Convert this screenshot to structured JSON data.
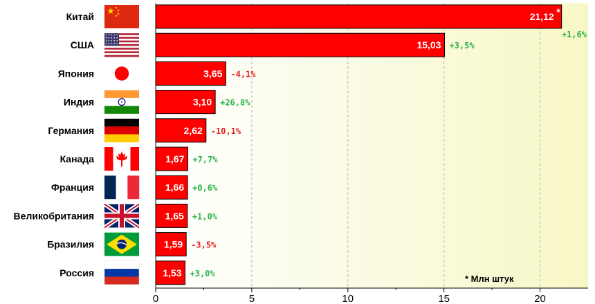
{
  "colors": {
    "bar": "#ff0000",
    "positive": "#2db34a",
    "negative": "#e02020",
    "plot_gradient_start": "#ffffff",
    "plot_gradient_end": "#f7f7c6"
  },
  "chart_data": {
    "type": "bar",
    "orientation": "horizontal",
    "categories": [
      "Китай",
      "США",
      "Япония",
      "Индия",
      "Германия",
      "Канада",
      "Франция",
      "Великобритания",
      "Бразилия",
      "Россия"
    ],
    "values": [
      21.12,
      15.03,
      3.65,
      3.1,
      2.62,
      1.67,
      1.66,
      1.65,
      1.59,
      1.53
    ],
    "value_labels": [
      "21,12",
      "15,03",
      "3,65",
      "3,10",
      "2,62",
      "1,67",
      "1,66",
      "1,65",
      "1,59",
      "1,53"
    ],
    "changes": [
      "+1,6%",
      "+3,5%",
      "-4,1%",
      "+26,8%",
      "-10,1%",
      "+7,7%",
      "+0,6%",
      "+1,0%",
      "-3,5%",
      "+3,0%"
    ],
    "flags": [
      "china-flag",
      "usa-flag",
      "japan-flag",
      "india-flag",
      "germany-flag",
      "canada-flag",
      "france-flag",
      "uk-flag",
      "brazil-flag",
      "russia-flag"
    ],
    "first_value_marker": "*",
    "footnote": "* Млн штук",
    "xlim": [
      0,
      22.5
    ],
    "x_ticks": [
      0,
      5,
      10,
      15,
      20
    ],
    "x_tick_labels": [
      "0",
      "5",
      "10",
      "15",
      "20"
    ],
    "grid": "vertical-dashed",
    "title": "",
    "xlabel": "",
    "ylabel": ""
  }
}
